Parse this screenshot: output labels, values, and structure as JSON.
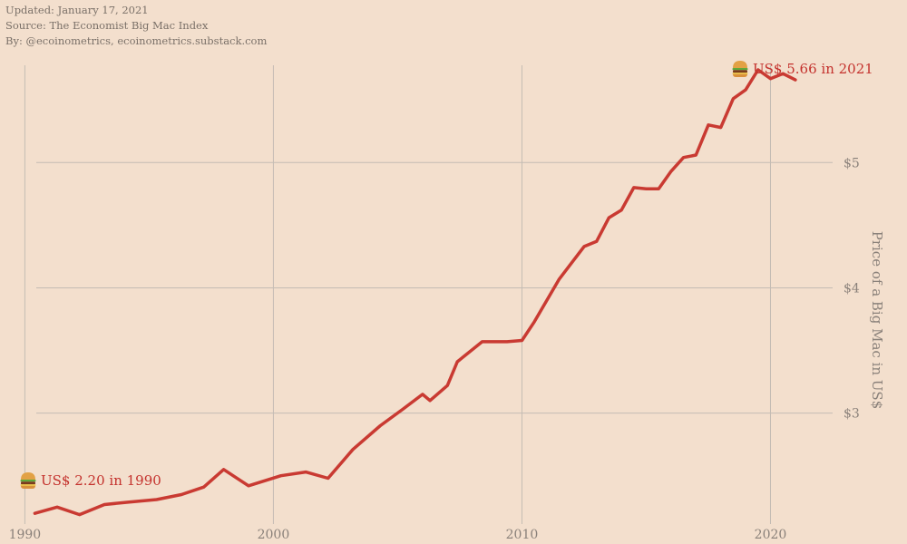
{
  "header": {
    "updated": "Updated: January 17, 2021",
    "source": "Source: The Economist Big Mac Index",
    "by": "By: @ecoinometrics, ecoinometrics.substack.com"
  },
  "colors": {
    "background": "#f3dfcd",
    "line": "#c93a32",
    "annotation": "#c4322d",
    "grid": "#c4bcb4",
    "text": "#8a817a"
  },
  "chart_data": {
    "type": "line",
    "title": "",
    "xlabel": "",
    "ylabel": "Price of a Big Mac in US$",
    "xlim": [
      1989.0,
      2022.5
    ],
    "ylim": [
      2.1,
      5.95
    ],
    "grid": true,
    "y_axis_side": "right",
    "x_ticks": [
      {
        "value": 1990,
        "label": "1990"
      },
      {
        "value": 2000,
        "label": "2000"
      },
      {
        "value": 2010,
        "label": "2010"
      },
      {
        "value": 2020,
        "label": "2020"
      }
    ],
    "y_ticks": [
      {
        "value": 3,
        "label": "$3"
      },
      {
        "value": 4,
        "label": "$4"
      },
      {
        "value": 5,
        "label": "$5"
      }
    ],
    "series": [
      {
        "x": [
          1990.4,
          1991.3,
          1992.2,
          1993.2,
          1994.2,
          1995.3,
          1996.3,
          1997.2,
          1998.0,
          1999.0,
          2000.3,
          2001.3,
          2002.2,
          2003.2,
          2004.3,
          2005.2,
          2006.0,
          2006.3,
          2007.0,
          2007.4,
          2008.4,
          2009.4,
          2010.0,
          2010.5,
          2011.5,
          2012.5,
          2013.0,
          2013.5,
          2014.0,
          2014.5,
          2015.0,
          2015.5,
          2016.0,
          2016.5,
          2017.0,
          2017.5,
          2018.0,
          2018.5,
          2019.0,
          2019.5,
          2020.0,
          2020.5,
          2021.0
        ],
        "y": [
          2.2,
          2.25,
          2.19,
          2.27,
          2.29,
          2.31,
          2.35,
          2.41,
          2.55,
          2.42,
          2.5,
          2.53,
          2.48,
          2.71,
          2.9,
          3.03,
          3.15,
          3.1,
          3.22,
          3.41,
          3.57,
          3.57,
          3.58,
          3.73,
          4.07,
          4.33,
          4.37,
          4.56,
          4.62,
          4.8,
          4.79,
          4.79,
          4.93,
          5.04,
          5.06,
          5.3,
          5.28,
          5.51,
          5.58,
          5.74,
          5.67,
          5.71,
          5.66
        ]
      }
    ],
    "annotations": [
      {
        "text": "US$ 2.20 in 1990",
        "x": 1990.4,
        "y": 2.2
      },
      {
        "text": "US$ 5.66 in 2021",
        "x": 2021.0,
        "y": 5.66
      }
    ]
  }
}
